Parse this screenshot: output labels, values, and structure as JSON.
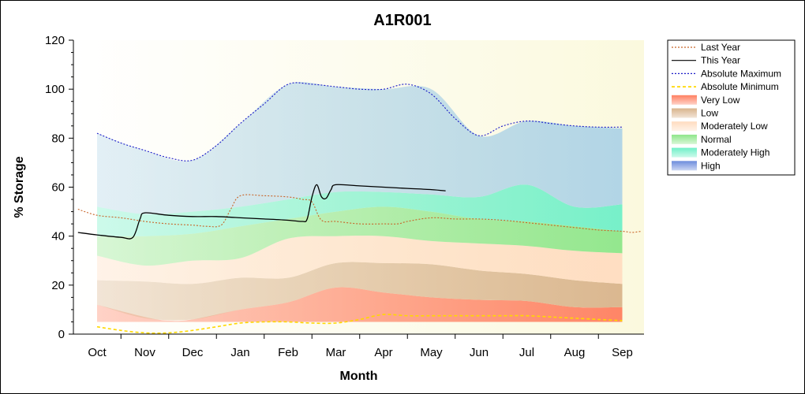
{
  "chart_data": {
    "type": "area",
    "title": "A1R001",
    "xlabel": "Month",
    "ylabel": "% Storage",
    "ylim": [
      0,
      120
    ],
    "yticks": [
      0,
      20,
      40,
      60,
      80,
      100,
      120
    ],
    "categories": [
      "Oct",
      "Nov",
      "Dec",
      "Jan",
      "Feb",
      "Mar",
      "Apr",
      "May",
      "Jun",
      "Jul",
      "Aug",
      "Sep"
    ],
    "grid": false,
    "legend_position": "right",
    "bands": [
      {
        "name": "Very Low",
        "color": "#ff7f60",
        "x": [
          0,
          1,
          1.5,
          2,
          3,
          4,
          5,
          6,
          7,
          8,
          9,
          10,
          11
        ],
        "low": [
          5,
          5,
          5,
          5,
          5,
          5,
          5,
          5,
          5,
          5,
          5,
          5,
          5
        ],
        "high": [
          12,
          7,
          5.5,
          6,
          10,
          13,
          19,
          17,
          15,
          14,
          13.5,
          11,
          11
        ]
      },
      {
        "name": "Low",
        "color": "#d9b48c",
        "x": [
          0,
          1,
          2,
          3,
          4,
          5,
          6,
          7,
          8,
          9,
          10,
          11
        ],
        "low": [
          12,
          6.5,
          6,
          10,
          13,
          19,
          17,
          15,
          14,
          13.5,
          11,
          11
        ],
        "high": [
          22,
          21.5,
          20.5,
          23,
          23,
          29,
          29,
          28.5,
          26,
          24.5,
          22,
          20.5
        ]
      },
      {
        "name": "Moderately Low",
        "color": "#ffdcc0",
        "x": [
          0,
          1,
          2,
          3,
          4,
          5,
          6,
          7,
          8,
          9,
          10,
          11
        ],
        "low": [
          22,
          21.5,
          20.5,
          23,
          23,
          29,
          29,
          28.5,
          26,
          24.5,
          22,
          20.5
        ],
        "high": [
          32,
          28,
          30,
          31,
          39,
          40,
          40,
          38,
          37,
          36,
          34,
          33
        ]
      },
      {
        "name": "Normal",
        "color": "#8ee68a",
        "x": [
          0,
          1,
          2,
          3,
          4,
          5,
          6,
          7,
          8,
          9,
          10,
          11
        ],
        "low": [
          32,
          28,
          30,
          31,
          39,
          40,
          40,
          38,
          37,
          36,
          34,
          33
        ],
        "high": [
          40,
          40,
          41,
          44,
          47,
          50,
          52,
          50,
          47,
          46,
          44,
          42
        ]
      },
      {
        "name": "Moderately High",
        "color": "#70f0c8",
        "x": [
          0,
          1,
          2,
          3,
          4,
          5,
          6,
          7,
          8,
          9,
          10,
          11
        ],
        "low": [
          40,
          40,
          41,
          44,
          47,
          50,
          52,
          50,
          47,
          46,
          44,
          42
        ],
        "high": [
          52,
          49,
          50,
          52,
          55,
          58,
          58,
          57,
          56,
          61,
          52,
          53
        ]
      },
      {
        "name": "High",
        "color": "#aed3e6",
        "x": [
          0,
          1,
          2,
          3,
          4,
          5,
          6,
          7,
          8,
          9,
          10,
          11
        ],
        "low": [
          52,
          49,
          50,
          52,
          55,
          58,
          58,
          57,
          56,
          61,
          52,
          53
        ],
        "high": [
          82,
          75,
          71,
          86,
          102,
          101,
          100,
          100,
          81,
          87,
          85,
          84
        ]
      }
    ],
    "series": [
      {
        "name": "Last Year",
        "color": "#c86428",
        "style": "dotted",
        "x": [
          -0.4,
          0,
          0.5,
          1,
          1.5,
          2,
          2.3,
          2.6,
          2.8,
          3,
          3.5,
          4,
          4.3,
          4.5,
          4.7,
          5,
          5.5,
          6,
          6.3,
          6.5,
          7,
          7.5,
          8,
          8.5,
          9,
          9.5,
          10,
          10.5,
          11,
          11.2,
          11.4
        ],
        "y": [
          51,
          48.5,
          47.5,
          46,
          45,
          44.5,
          44,
          44.5,
          51,
          56.5,
          56.5,
          56,
          55,
          54,
          46.5,
          46,
          45,
          45,
          45,
          46,
          47.5,
          47,
          47,
          46.5,
          45.5,
          44.5,
          43.5,
          42.5,
          42,
          41.5,
          42
        ]
      },
      {
        "name": "This Year",
        "color": "#000000",
        "style": "solid",
        "x": [
          -0.4,
          0,
          0.5,
          0.75,
          0.9,
          1,
          1.5,
          2,
          2.5,
          3,
          3.5,
          4,
          4.3,
          4.4,
          4.5,
          4.6,
          4.7,
          4.8,
          4.9,
          5,
          5.5,
          6,
          6.5,
          7,
          7.3
        ],
        "y": [
          41.5,
          40.5,
          39.5,
          39.5,
          47,
          49.5,
          48.5,
          48,
          48,
          47.5,
          47,
          46.5,
          46,
          47,
          56,
          61,
          56,
          55.5,
          59,
          61,
          60.5,
          60,
          59.5,
          59,
          58.5
        ]
      },
      {
        "name": "Absolute Maximum",
        "color": "#1b1bc8",
        "style": "dotted",
        "x": [
          0,
          0.5,
          1,
          1.5,
          2,
          2.5,
          3,
          3.5,
          4,
          4.5,
          5,
          5.5,
          6,
          6.5,
          7,
          7.5,
          8,
          8.5,
          9,
          9.5,
          10,
          10.5,
          11
        ],
        "y": [
          82,
          78,
          75,
          72,
          71,
          77,
          86,
          94,
          102,
          102,
          101,
          100,
          100,
          102,
          98,
          88,
          81,
          85,
          87,
          86,
          85,
          84.5,
          84.5
        ]
      },
      {
        "name": "Absolute Minimum",
        "color": "#ffd800",
        "style": "dashed",
        "x": [
          0,
          0.5,
          1,
          1.5,
          2,
          2.5,
          3,
          3.5,
          4,
          4.5,
          5,
          5.5,
          6,
          6.5,
          7,
          7.5,
          8,
          8.5,
          9,
          9.5,
          10,
          10.5,
          11
        ],
        "y": [
          3,
          1.5,
          0.5,
          0.5,
          1.5,
          3,
          4.5,
          5,
          5,
          4.5,
          4.5,
          6,
          8,
          7.5,
          7.5,
          7.5,
          7.5,
          7.5,
          7.5,
          7,
          6.5,
          6,
          5.5
        ]
      }
    ],
    "legend": [
      {
        "label": "Last Year",
        "kind": "line",
        "color": "#c86428",
        "style": "dotted"
      },
      {
        "label": "This Year",
        "kind": "line",
        "color": "#000000",
        "style": "solid"
      },
      {
        "label": "Absolute Maximum",
        "kind": "line",
        "color": "#1b1bc8",
        "style": "dotted"
      },
      {
        "label": "Absolute Minimum",
        "kind": "line",
        "color": "#ffd800",
        "style": "dashed"
      },
      {
        "label": "Very Low",
        "kind": "area",
        "color": "#ff7f60"
      },
      {
        "label": "Low",
        "kind": "area",
        "color": "#d9b48c"
      },
      {
        "label": "Moderately Low",
        "kind": "area",
        "color": "#ffdcc0"
      },
      {
        "label": "Normal",
        "kind": "area",
        "color": "#8ee68a"
      },
      {
        "label": "Moderately High",
        "kind": "area",
        "color": "#70f0c8"
      },
      {
        "label": "High",
        "kind": "area",
        "color": "#6c8cdc"
      }
    ],
    "colors": {
      "plot_background": "#fcfce8",
      "axis": "#000000"
    }
  }
}
